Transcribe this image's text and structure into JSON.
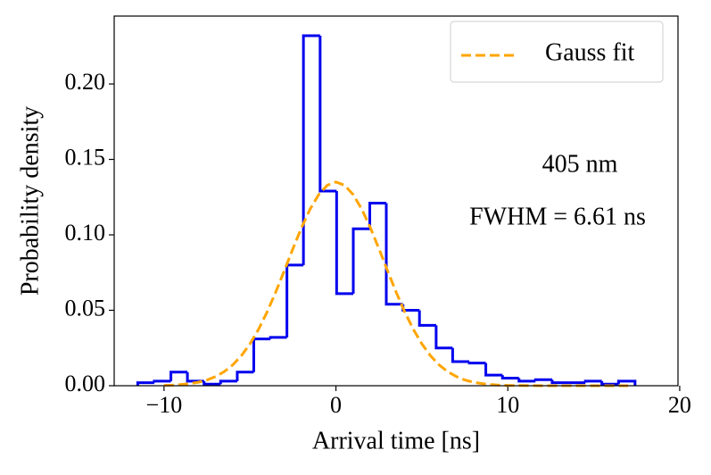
{
  "chart_data": {
    "type": "histogram",
    "xlabel": "Arrival time [ns]",
    "ylabel": "Probability density",
    "bins": [
      -11.53,
      -10.57,
      -9.6,
      -8.64,
      -7.67,
      -6.71,
      -5.74,
      -4.78,
      -3.81,
      -2.85,
      -1.89,
      -0.92,
      0.04,
      1.01,
      1.97,
      2.93,
      3.9,
      4.86,
      5.83,
      6.79,
      7.76,
      8.72,
      9.69,
      10.65,
      11.61,
      12.58,
      13.54,
      14.51,
      15.47,
      16.44,
      17.4
    ],
    "values": [
      0.002,
      0.003,
      0.009,
      0.003,
      0.001,
      0.003,
      0.009,
      0.031,
      0.032,
      0.08,
      0.232,
      0.129,
      0.061,
      0.104,
      0.121,
      0.054,
      0.05,
      0.04,
      0.025,
      0.016,
      0.015,
      0.007,
      0.005,
      0.003,
      0.004,
      0.002,
      0.002,
      0.003,
      0.001,
      0.003
    ],
    "color": "#0000ee",
    "fit": {
      "name": "Gauss fit",
      "color": "#ffa500",
      "x": [
        -10,
        -9.5,
        -9,
        -8.5,
        -8,
        -7.5,
        -7,
        -6.5,
        -6,
        -5.5,
        -5,
        -4.5,
        -4,
        -3.5,
        -3,
        -2.5,
        -2,
        -1.5,
        -1,
        -0.5,
        0,
        0.5,
        1,
        1.5,
        2,
        2.5,
        3,
        3.5,
        4,
        4.5,
        5,
        5.5,
        6,
        6.5,
        7,
        7.5,
        8,
        8.5,
        9,
        9.5,
        10,
        12,
        14,
        17
      ],
      "values": [
        0.0002,
        0.0004,
        0.0008,
        0.0014,
        0.0023,
        0.0038,
        0.0061,
        0.0093,
        0.0138,
        0.0199,
        0.0277,
        0.0374,
        0.049,
        0.0621,
        0.0763,
        0.0909,
        0.1048,
        0.1171,
        0.1267,
        0.1329,
        0.135,
        0.1329,
        0.1267,
        0.1171,
        0.1048,
        0.0909,
        0.0763,
        0.0621,
        0.049,
        0.0374,
        0.0277,
        0.0199,
        0.0138,
        0.0093,
        0.0061,
        0.0038,
        0.0023,
        0.0014,
        0.0008,
        0.0004,
        0.0002,
        0,
        0,
        0
      ]
    },
    "annotations": [
      "405 nm",
      "FWHM = 6.61 ns"
    ],
    "legend": "upper right",
    "grid": false,
    "xlim": [
      -12.9,
      19.9
    ],
    "ylim": [
      0,
      0.245
    ],
    "xticks": [
      {
        "value": -10,
        "label": "−10"
      },
      0,
      10,
      20
    ],
    "yticks": [
      {
        "value": 0,
        "label": "0.00"
      },
      {
        "value": 0.05,
        "label": "0.05"
      },
      {
        "value": 0.1,
        "label": "0.10"
      },
      {
        "value": 0.15,
        "label": "0.15"
      },
      {
        "value": 0.2,
        "label": "0.20"
      }
    ]
  }
}
